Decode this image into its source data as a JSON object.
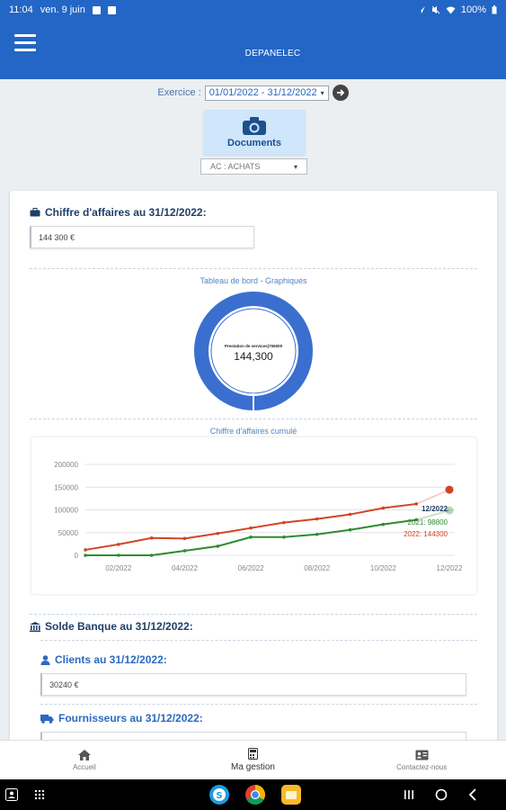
{
  "status_bar": {
    "time": "11:04",
    "date": "ven. 9 juin",
    "battery": "100%"
  },
  "app": {
    "title": "DEPANELEC"
  },
  "exercice": {
    "label": "Exercice :",
    "value": "01/01/2022 - 31/12/2022"
  },
  "documents_button": {
    "label": "Documents"
  },
  "journal_select": {
    "value": "AC : ACHATS"
  },
  "chiffre_affaires": {
    "title": "Chiffre d'affaires au 31/12/2022:",
    "value": "144 300 €"
  },
  "dashboard": {
    "caption": "Tableau de bord - Graphiques"
  },
  "donut": {
    "center_label": "Prestation de services(706000",
    "center_value": "144,300"
  },
  "cumul": {
    "caption": "Chiffre d'affaires cumulé"
  },
  "chart_data": {
    "type": "line",
    "title": "Chiffre d'affaires cumulé",
    "x": [
      "01/2022",
      "02/2022",
      "03/2022",
      "04/2022",
      "05/2022",
      "06/2022",
      "07/2022",
      "08/2022",
      "09/2022",
      "10/2022",
      "11/2022",
      "12/2022"
    ],
    "x_tick_labels": [
      "02/2022",
      "04/2022",
      "06/2022",
      "08/2022",
      "10/2022",
      "12/2022"
    ],
    "y_ticks": [
      "200000",
      "150000",
      "100000",
      "50000",
      "0"
    ],
    "ylim": [
      0,
      200000
    ],
    "series": [
      {
        "name": "2022",
        "color": "#d14524",
        "values": [
          12000,
          24000,
          38000,
          37000,
          48000,
          60000,
          72000,
          80000,
          90000,
          104000,
          113000,
          144300
        ]
      },
      {
        "name": "2021",
        "color": "#2e8b2e",
        "values": [
          0,
          0,
          0,
          10000,
          20000,
          40000,
          40000,
          46000,
          56000,
          68000,
          78000,
          98800
        ]
      }
    ],
    "tooltip": {
      "header": "12/2022",
      "line1": "2021: 98800",
      "line2": "2022: 144300"
    }
  },
  "solde_banque": {
    "title": "Solde Banque au 31/12/2022:"
  },
  "clients": {
    "title": "Clients au 31/12/2022:",
    "value": "30240 €"
  },
  "fournisseurs": {
    "title": "Fournisseurs au 31/12/2022:"
  },
  "bottom_nav": {
    "home": "Accueil",
    "gestion": "Ma gestion",
    "contact": "Contactez-nous"
  },
  "colors": {
    "primary": "#2366c5",
    "donut": "#3a6fd0",
    "series_2022": "#d14524",
    "series_2021": "#2e8b2e"
  }
}
